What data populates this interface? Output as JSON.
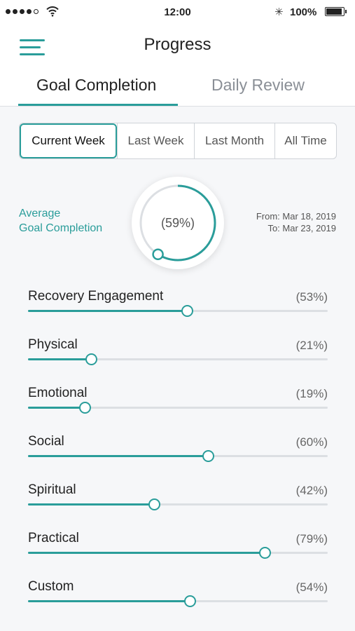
{
  "status_bar": {
    "time": "12:00",
    "battery": "100%"
  },
  "header": {
    "title": "Progress"
  },
  "tabs": [
    {
      "label": "Goal Completion",
      "active": true
    },
    {
      "label": "Daily Review",
      "active": false
    }
  ],
  "segments": [
    {
      "label": "Current Week",
      "active": true
    },
    {
      "label": "Last Week",
      "active": false
    },
    {
      "label": "Last Month",
      "active": false
    },
    {
      "label": "All Time",
      "active": false
    }
  ],
  "summary": {
    "label_line1": "Average",
    "label_line2": "Goal Completion",
    "percent_text": "(59%)",
    "value": 59,
    "from": "From: Mar 18, 2019",
    "to": "To: Mar 23, 2019"
  },
  "metrics": [
    {
      "label": "Recovery Engagement",
      "percent_text": "(53%)",
      "value": 53
    },
    {
      "label": "Physical",
      "percent_text": "(21%)",
      "value": 21
    },
    {
      "label": "Emotional",
      "percent_text": "(19%)",
      "value": 19
    },
    {
      "label": "Social",
      "percent_text": "(60%)",
      "value": 60
    },
    {
      "label": "Spiritual",
      "percent_text": "(42%)",
      "value": 42
    },
    {
      "label": "Practical",
      "percent_text": "(79%)",
      "value": 79
    },
    {
      "label": "Custom",
      "percent_text": "(54%)",
      "value": 54
    }
  ],
  "colors": {
    "accent": "#2a9d9a",
    "track": "#dcdfe3"
  },
  "icons": {
    "menu": "hamburger-icon",
    "wifi": "wifi-icon",
    "bluetooth": "bluetooth-icon",
    "battery": "battery-icon"
  }
}
